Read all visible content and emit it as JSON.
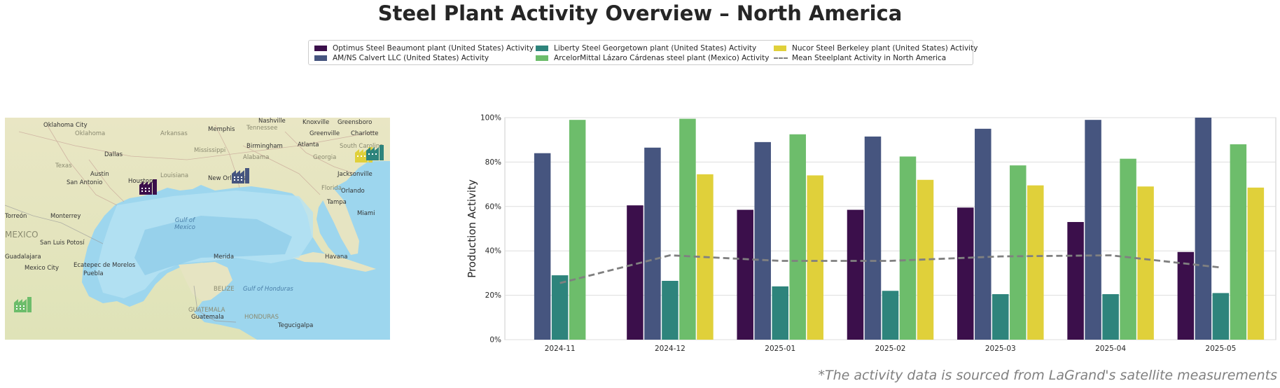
{
  "title": "Steel Plant Activity Overview – North America",
  "footnote": "*The activity data is sourced from LaGrand's satellite measurements",
  "legend": [
    {
      "label": "Optimus Steel Beaumont plant (United States) Activity",
      "color": "#3b0f4b",
      "kind": "bar"
    },
    {
      "label": "AM/NS Calvert LLC (United States) Activity",
      "color": "#46557f",
      "kind": "bar"
    },
    {
      "label": "Liberty Steel Georgetown plant (United States) Activity",
      "color": "#2e847c",
      "kind": "bar"
    },
    {
      "label": "ArcelorMittal Lázaro Cárdenas steel plant (Mexico) Activity",
      "color": "#6dbd6b",
      "kind": "bar"
    },
    {
      "label": "Nucor Steel Berkeley plant (United States) Activity",
      "color": "#e0d03a",
      "kind": "bar"
    },
    {
      "label": "Mean Steelplant Activity in North America",
      "color": "#808080",
      "kind": "dashed-line"
    }
  ],
  "map": {
    "labels": [
      {
        "text": "Oklahoma City",
        "style": "plain"
      },
      {
        "text": "Memphis",
        "style": "plain"
      },
      {
        "text": "Nashville",
        "style": "plain"
      },
      {
        "text": "Knoxville",
        "style": "plain"
      },
      {
        "text": "Greensboro",
        "style": "plain"
      },
      {
        "text": "Charlotte",
        "style": "plain"
      },
      {
        "text": "Greenville",
        "style": "plain"
      },
      {
        "text": "Atlanta",
        "style": "plain"
      },
      {
        "text": "Birmingham",
        "style": "plain"
      },
      {
        "text": "Dallas",
        "style": "plain"
      },
      {
        "text": "Texas",
        "style": "faint"
      },
      {
        "text": "Austin",
        "style": "plain"
      },
      {
        "text": "San Antonio",
        "style": "plain"
      },
      {
        "text": "Houston",
        "style": "plain"
      },
      {
        "text": "New Orleans",
        "style": "plain"
      },
      {
        "text": "Jacksonville",
        "style": "plain"
      },
      {
        "text": "Orlando",
        "style": "plain"
      },
      {
        "text": "Tampa",
        "style": "plain"
      },
      {
        "text": "Miami",
        "style": "plain"
      },
      {
        "text": "Torreón",
        "style": "plain"
      },
      {
        "text": "Monterrey",
        "style": "plain"
      },
      {
        "text": "MEXICO",
        "style": "faint"
      },
      {
        "text": "San Luis Potosí",
        "style": "plain"
      },
      {
        "text": "Guadalajara",
        "style": "plain"
      },
      {
        "text": "Mexico City",
        "style": "plain"
      },
      {
        "text": "Ecatepec de Morelos",
        "style": "plain"
      },
      {
        "text": "Puebla",
        "style": "plain"
      },
      {
        "text": "Gulf of Mexico",
        "style": "water"
      },
      {
        "text": "Havana",
        "style": "plain"
      },
      {
        "text": "Merida",
        "style": "plain"
      },
      {
        "text": "BELIZE",
        "style": "faint"
      },
      {
        "text": "Gulf of Honduras",
        "style": "water"
      },
      {
        "text": "GUATEMALA",
        "style": "faint"
      },
      {
        "text": "Guatemala",
        "style": "plain"
      },
      {
        "text": "HONDURAS",
        "style": "faint"
      },
      {
        "text": "Tegucigalpa",
        "style": "plain"
      },
      {
        "text": "Arkansas",
        "style": "faint"
      },
      {
        "text": "Mississippi",
        "style": "faint"
      },
      {
        "text": "Alabama",
        "style": "faint"
      },
      {
        "text": "Georgia",
        "style": "faint"
      },
      {
        "text": "Louisiana",
        "style": "faint"
      },
      {
        "text": "Florida",
        "style": "faint"
      },
      {
        "text": "Tennessee",
        "style": "faint"
      },
      {
        "text": "Oklahoma",
        "style": "faint"
      },
      {
        "text": "South Carolina",
        "style": "faint"
      }
    ]
  },
  "chart_data": {
    "type": "bar",
    "categories": [
      "2024-11",
      "2024-12",
      "2025-01",
      "2025-02",
      "2025-03",
      "2025-04",
      "2025-05"
    ],
    "series": [
      {
        "name": "Optimus Steel Beaumont plant (United States) Activity",
        "color": "#3b0f4b",
        "values": [
          null,
          60.5,
          58.5,
          58.5,
          59.5,
          53,
          39.5
        ]
      },
      {
        "name": "AM/NS Calvert LLC (United States) Activity",
        "color": "#46557f",
        "values": [
          84,
          86.5,
          89,
          91.5,
          95,
          99,
          100
        ]
      },
      {
        "name": "Liberty Steel Georgetown plant (United States) Activity",
        "color": "#2e847c",
        "values": [
          29,
          26.5,
          24,
          22,
          20.5,
          20.5,
          21
        ]
      },
      {
        "name": "ArcelorMittal Lázaro Cárdenas steel plant (Mexico) Activity",
        "color": "#6dbd6b",
        "values": [
          99,
          99.5,
          92.5,
          82.5,
          78.5,
          81.5,
          88
        ]
      },
      {
        "name": "Nucor Steel Berkeley plant (United States) Activity",
        "color": "#e0d03a",
        "values": [
          null,
          74.5,
          74,
          72,
          69.5,
          69,
          68.5
        ]
      }
    ],
    "mean_line": {
      "name": "Mean Steelplant Activity in North America",
      "color": "#808080",
      "values": [
        25.5,
        38,
        35.5,
        35.5,
        37.5,
        38,
        32.5
      ]
    },
    "title": "",
    "xlabel": "",
    "ylabel": "Production Activity",
    "ylim": [
      0,
      100
    ],
    "yticks": [
      "0%",
      "20%",
      "40%",
      "60%",
      "80%",
      "100%"
    ],
    "grid": true,
    "legend_position": "top-center"
  }
}
